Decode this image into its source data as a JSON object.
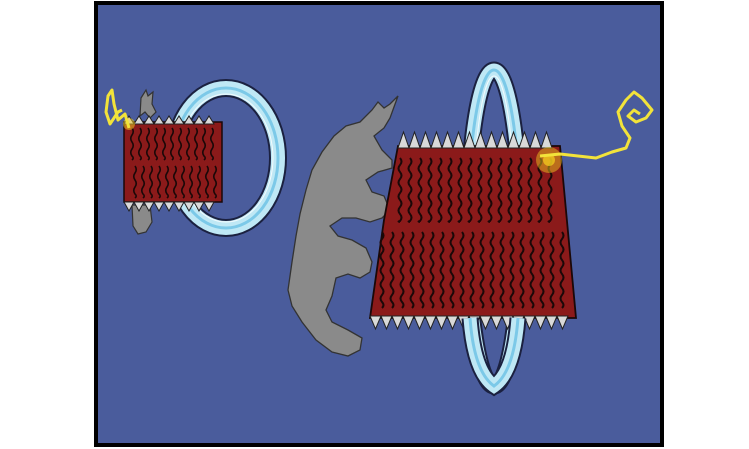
{
  "scene": {
    "colors": {
      "page_background": "#ffffff",
      "panel_background": "#4a5c9c",
      "panel_border": "#000000",
      "creature_gray": "#8a8a8a",
      "drum_red": "#8b1a1a",
      "drum_stripe": "#1a0808",
      "tooth_fill": "#d9d9d9",
      "ring_light": "#bfe8f5",
      "ring_mid": "#7cc9e8",
      "spark_yellow": "#f2e33a",
      "spark_glow": "#f7d21e"
    },
    "icons": [
      "small-creature-icon",
      "small-red-drum-icon",
      "small-blue-ring-icon",
      "small-yellow-spark-icon",
      "large-creature-icon",
      "large-red-drum-icon",
      "large-blue-ring-icon",
      "large-yellow-spark-icon"
    ]
  }
}
